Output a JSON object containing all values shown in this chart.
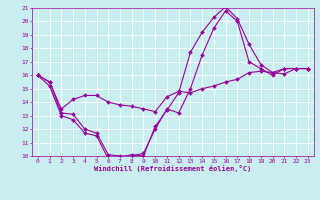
{
  "title": "",
  "xlabel": "Windchill (Refroidissement éolien,°C)",
  "ylabel": "",
  "bg_color": "#c8eef0",
  "line_color": "#990099",
  "grid_color": "#ffffff",
  "xlim": [
    -0.5,
    23.5
  ],
  "ylim": [
    10,
    21
  ],
  "xticks": [
    0,
    1,
    2,
    3,
    4,
    5,
    6,
    7,
    8,
    9,
    10,
    11,
    12,
    13,
    14,
    15,
    16,
    17,
    18,
    19,
    20,
    21,
    22,
    23
  ],
  "yticks": [
    10,
    11,
    12,
    13,
    14,
    15,
    16,
    17,
    18,
    19,
    20,
    21
  ],
  "line1_x": [
    0,
    1,
    2,
    3,
    4,
    5,
    6,
    7,
    8,
    9,
    10,
    11,
    12,
    13,
    14,
    15,
    16,
    17,
    18,
    19,
    20,
    21,
    22,
    23
  ],
  "line1_y": [
    16,
    15.2,
    13.0,
    12.7,
    11.7,
    11.5,
    9.8,
    9.9,
    10.1,
    10.0,
    12.2,
    13.4,
    14.7,
    17.7,
    19.2,
    20.3,
    21.1,
    20.2,
    18.3,
    16.8,
    16.2,
    16.1,
    16.5,
    16.5
  ],
  "line2_x": [
    0,
    1,
    2,
    3,
    4,
    5,
    6,
    7,
    8,
    9,
    10,
    11,
    12,
    13,
    14,
    15,
    16,
    17,
    18,
    19,
    20,
    21,
    22,
    23
  ],
  "line2_y": [
    16,
    15.5,
    13.5,
    14.2,
    14.5,
    14.5,
    14.0,
    13.8,
    13.7,
    13.5,
    13.3,
    14.4,
    14.8,
    14.7,
    15.0,
    15.2,
    15.5,
    15.7,
    16.2,
    16.3,
    16.2,
    16.5,
    16.5,
    16.5
  ],
  "line3_x": [
    0,
    1,
    2,
    3,
    4,
    5,
    6,
    7,
    8,
    9,
    10,
    11,
    12,
    13,
    14,
    15,
    16,
    17,
    18,
    19,
    20,
    21,
    22,
    23
  ],
  "line3_y": [
    16,
    15.5,
    13.2,
    13.1,
    12.0,
    11.7,
    10.1,
    10.0,
    10.0,
    10.2,
    12.0,
    13.5,
    13.2,
    15.0,
    17.5,
    19.5,
    20.8,
    20.0,
    17.0,
    16.5,
    16.0,
    16.5,
    16.5,
    16.5
  ],
  "marker": "D",
  "marker_size": 2,
  "linewidth": 0.8,
  "tick_fontsize": 4.5,
  "xlabel_fontsize": 5.0
}
